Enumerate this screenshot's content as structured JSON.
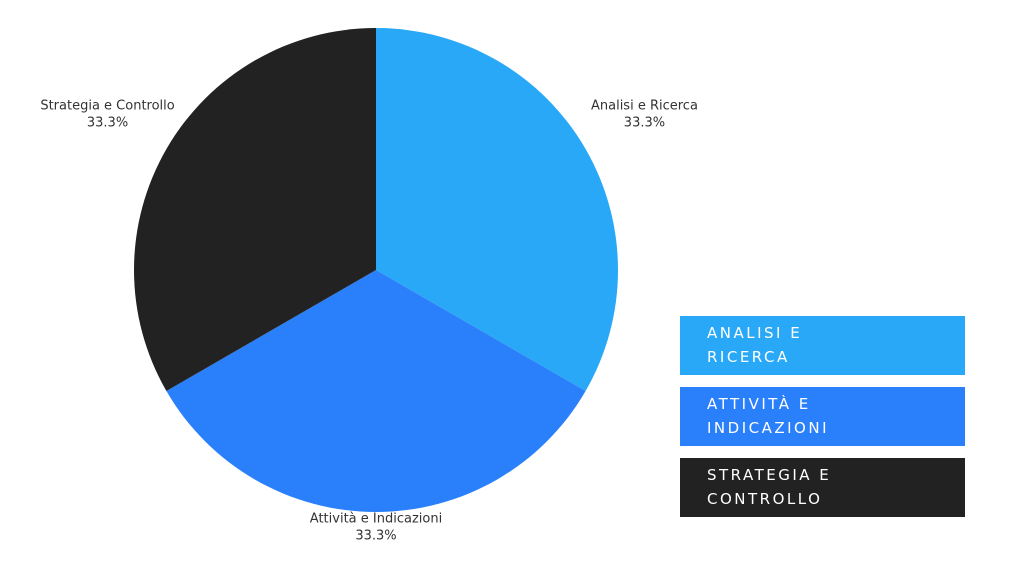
{
  "chart_data": {
    "type": "pie",
    "categories": [
      "Analisi e Ricerca",
      "Attività e Indicazioni",
      "Strategia e Controllo"
    ],
    "values": [
      33.3,
      33.3,
      33.3
    ],
    "value_labels": [
      "33.3%",
      "33.3%",
      "33.3%"
    ],
    "colors": [
      "#29a8f8",
      "#2a7ffa",
      "#222222"
    ],
    "legend": "right"
  }
}
